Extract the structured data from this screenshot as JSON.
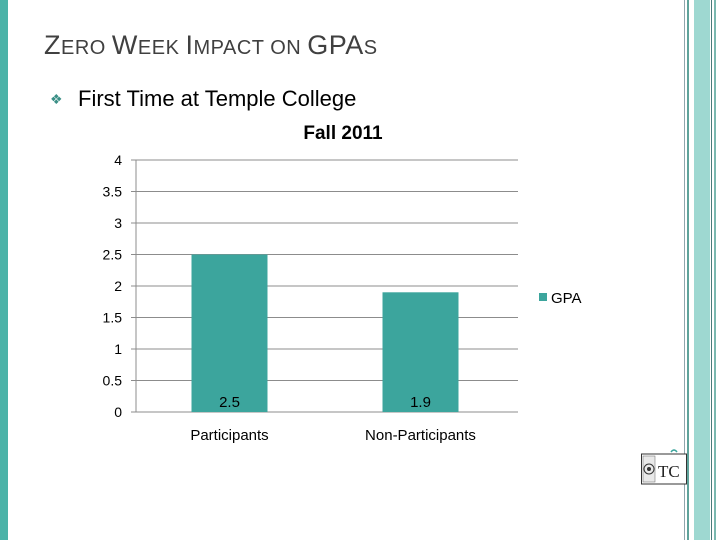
{
  "slide": {
    "title_parts": [
      {
        "text": "Z",
        "small": false
      },
      {
        "text": "ERO ",
        "small": true
      },
      {
        "text": "W",
        "small": false
      },
      {
        "text": "EEK ",
        "small": true
      },
      {
        "text": "I",
        "small": false
      },
      {
        "text": "MPACT ON ",
        "small": true
      },
      {
        "text": "GPA",
        "small": false
      },
      {
        "text": "S",
        "small": true
      }
    ],
    "bullet": "First Time at Temple College",
    "accent_color": "#3ca59d"
  },
  "logo": {
    "text": "TC"
  },
  "chart_data": {
    "type": "bar",
    "title": "Fall 2011",
    "categories": [
      "Participants",
      "Non-Participants"
    ],
    "series": [
      {
        "name": "GPA",
        "values": [
          2.5,
          1.9
        ],
        "color": "#3ca59d"
      }
    ],
    "data_labels": [
      "2.5",
      "1.9"
    ],
    "yticks": [
      "0",
      "0.5",
      "1",
      "1.5",
      "2",
      "2.5",
      "3",
      "3.5",
      "4"
    ],
    "ylim": [
      0,
      4
    ],
    "xlabel": "",
    "ylabel": "",
    "grid": true,
    "legend_position": "right"
  }
}
